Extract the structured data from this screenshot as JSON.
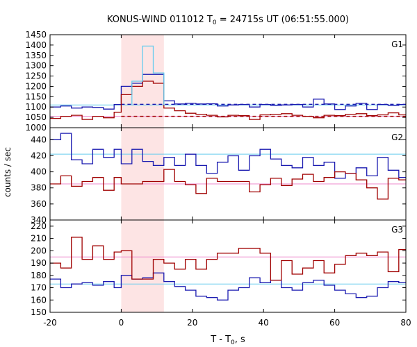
{
  "figure": {
    "title_prefix": "KONUS-WIND 011012 T",
    "title_sub": "0",
    "title_suffix": " = 24715s UT (06:51:55.000)",
    "ylabel": "counts / sec",
    "xlabel_prefix": "T - T",
    "xlabel_sub": "0",
    "xlabel_suffix": ", s"
  },
  "colors": {
    "blue": "#1a1ab0",
    "red": "#a00000",
    "cyan": "#66ccee",
    "pink": "#ee88cc",
    "highlight": "#fde4e4",
    "frame": "#000000"
  },
  "chart_data": {
    "type": "line",
    "x_range": [
      -20,
      80
    ],
    "x_ticks": [
      -20,
      0,
      20,
      40,
      60,
      80
    ],
    "highlight_interval": [
      0,
      12
    ],
    "panels": [
      {
        "label": "G1",
        "ylim": [
          1000,
          1450
        ],
        "y_ticks": [
          1000,
          1050,
          1100,
          1150,
          1200,
          1250,
          1300,
          1350,
          1400,
          1450
        ],
        "series": [
          {
            "color_key": "blue",
            "edges": [
              -20,
              -17,
              -14,
              -11,
              -8,
              -5,
              -2,
              0,
              3,
              6,
              9,
              12,
              15,
              18,
              21,
              24,
              27,
              30,
              33,
              36,
              39,
              42,
              45,
              48,
              51,
              54,
              57,
              60,
              63,
              66,
              69,
              72,
              75,
              78,
              80
            ],
            "values": [
              1100,
              1105,
              1095,
              1100,
              1098,
              1090,
              1112,
              1200,
              1215,
              1258,
              1258,
              1130,
              1115,
              1118,
              1115,
              1116,
              1105,
              1110,
              1112,
              1100,
              1112,
              1108,
              1110,
              1112,
              1100,
              1138,
              1115,
              1088,
              1105,
              1118,
              1088,
              1112,
              1108,
              1112
            ]
          },
          {
            "color_key": "red",
            "edges": [
              -20,
              -17,
              -14,
              -11,
              -8,
              -5,
              -2,
              0,
              3,
              6,
              9,
              12,
              15,
              18,
              21,
              24,
              27,
              30,
              33,
              36,
              39,
              42,
              45,
              48,
              51,
              54,
              57,
              60,
              63,
              66,
              69,
              72,
              75,
              78,
              80
            ],
            "values": [
              1045,
              1055,
              1060,
              1040,
              1055,
              1048,
              1075,
              1160,
              1200,
              1225,
              1215,
              1095,
              1082,
              1070,
              1065,
              1060,
              1052,
              1060,
              1058,
              1040,
              1062,
              1065,
              1068,
              1060,
              1055,
              1048,
              1060,
              1058,
              1065,
              1068,
              1058,
              1062,
              1072,
              1062
            ]
          },
          {
            "color_key": "cyan",
            "edges": [
              3,
              6,
              9,
              12
            ],
            "values": [
              1225,
              1395,
              1265
            ]
          }
        ],
        "levels": [
          {
            "color_key": "cyan",
            "value": 1110
          },
          {
            "color_key": "pink",
            "value": 1055
          },
          {
            "color_key": "blue",
            "value": 1113,
            "dashed": true,
            "from": 0
          },
          {
            "color_key": "red",
            "value": 1055,
            "dashed": true,
            "from": 0
          }
        ]
      },
      {
        "label": "G2",
        "ylim": [
          340,
          455
        ],
        "y_ticks": [
          340,
          360,
          380,
          400,
          420,
          440
        ],
        "series": [
          {
            "color_key": "blue",
            "edges": [
              -20,
              -17,
              -14,
              -11,
              -8,
              -5,
              -2,
              0,
              3,
              6,
              9,
              12,
              15,
              18,
              21,
              24,
              27,
              30,
              33,
              36,
              39,
              42,
              45,
              48,
              51,
              54,
              57,
              60,
              63,
              66,
              69,
              72,
              75,
              78,
              80
            ],
            "values": [
              440,
              448,
              415,
              410,
              428,
              418,
              428,
              410,
              428,
              413,
              408,
              418,
              408,
              422,
              408,
              398,
              412,
              420,
              402,
              420,
              428,
              416,
              408,
              405,
              418,
              408,
              412,
              392,
              398,
              405,
              395,
              418,
              402,
              393
            ]
          },
          {
            "color_key": "red",
            "edges": [
              -20,
              -17,
              -14,
              -11,
              -8,
              -5,
              -2,
              0,
              3,
              6,
              9,
              12,
              15,
              18,
              21,
              24,
              27,
              30,
              33,
              36,
              39,
              42,
              45,
              48,
              51,
              54,
              57,
              60,
              63,
              66,
              69,
              72,
              75,
              78,
              80
            ],
            "values": [
              385,
              395,
              382,
              388,
              393,
              377,
              393,
              385,
              385,
              388,
              388,
              403,
              388,
              384,
              373,
              392,
              388,
              388,
              388,
              375,
              384,
              392,
              383,
              391,
              397,
              388,
              393,
              400,
              398,
              390,
              380,
              366,
              392,
              390
            ]
          }
        ],
        "levels": [
          {
            "color_key": "cyan",
            "value": 422
          },
          {
            "color_key": "pink",
            "value": 385
          }
        ]
      },
      {
        "label": "G3",
        "ylim": [
          150,
          225
        ],
        "y_ticks": [
          150,
          160,
          170,
          180,
          190,
          200,
          210,
          220
        ],
        "series": [
          {
            "color_key": "blue",
            "edges": [
              -20,
              -17,
              -14,
              -11,
              -8,
              -5,
              -2,
              0,
              3,
              6,
              9,
              12,
              15,
              18,
              21,
              24,
              27,
              30,
              33,
              36,
              39,
              42,
              45,
              48,
              51,
              54,
              57,
              60,
              63,
              66,
              69,
              72,
              75,
              78,
              80
            ],
            "values": [
              177,
              170,
              173,
              174,
              172,
              175,
              170,
              180,
              177,
              178,
              182,
              175,
              171,
              168,
              163,
              162,
              160,
              168,
              170,
              178,
              174,
              176,
              170,
              168,
              174,
              176,
              172,
              168,
              165,
              162,
              163,
              170,
              175,
              174
            ]
          },
          {
            "color_key": "red",
            "edges": [
              -20,
              -17,
              -14,
              -11,
              -8,
              -5,
              -2,
              0,
              3,
              6,
              9,
              12,
              15,
              18,
              21,
              24,
              27,
              30,
              33,
              36,
              39,
              42,
              45,
              48,
              51,
              54,
              57,
              60,
              63,
              66,
              69,
              72,
              75,
              78,
              80
            ],
            "values": [
              190,
              186,
              211,
              193,
              204,
              193,
              199,
              200,
              177,
              177,
              193,
              190,
              185,
              193,
              185,
              193,
              198,
              198,
              202,
              202,
              198,
              176,
              192,
              181,
              186,
              192,
              182,
              189,
              196,
              198,
              196,
              199,
              183,
              201
            ]
          }
        ],
        "levels": [
          {
            "color_key": "cyan",
            "value": 173
          },
          {
            "color_key": "pink",
            "value": 195
          }
        ]
      }
    ]
  }
}
